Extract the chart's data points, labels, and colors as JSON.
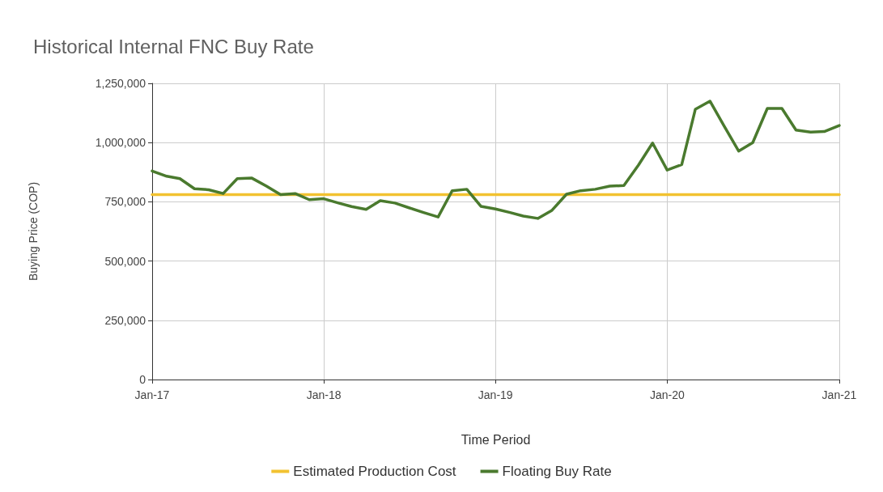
{
  "chart_data": {
    "type": "line",
    "title": "Historical Internal FNC Buy Rate",
    "xlabel": "Time Period",
    "ylabel": "Buying Price (COP)",
    "x": [
      "2017-01",
      "2017-02",
      "2017-03",
      "2017-04",
      "2017-05",
      "2017-06",
      "2017-07",
      "2017-08",
      "2017-09",
      "2017-10",
      "2017-11",
      "2017-12",
      "2018-01",
      "2018-02",
      "2018-03",
      "2018-04",
      "2018-05",
      "2018-06",
      "2018-07",
      "2018-08",
      "2018-09",
      "2018-10",
      "2018-11",
      "2018-12",
      "2019-01",
      "2019-02",
      "2019-03",
      "2019-04",
      "2019-05",
      "2019-06",
      "2019-07",
      "2019-08",
      "2019-09",
      "2019-10",
      "2019-11",
      "2019-12",
      "2020-01",
      "2020-02",
      "2020-03",
      "2020-04",
      "2020-05",
      "2020-06",
      "2020-07",
      "2020-08",
      "2020-09",
      "2020-10",
      "2020-11",
      "2020-12",
      "2021-01"
    ],
    "series": [
      {
        "name": "Floating Buy Rate",
        "color": "#4a7a2e",
        "values": [
          880000,
          858000,
          848000,
          805000,
          801000,
          785000,
          848000,
          850000,
          816000,
          780000,
          785000,
          759000,
          763000,
          745000,
          730000,
          718000,
          755000,
          745000,
          725000,
          705000,
          686000,
          797000,
          803000,
          731000,
          720000,
          705000,
          690000,
          680000,
          714000,
          782000,
          797000,
          803000,
          816000,
          819000,
          905000,
          998000,
          884000,
          907000,
          1141000,
          1175000,
          1070000,
          964000,
          1000000,
          1144000,
          1144000,
          1053000,
          1044000,
          1047000,
          1072000
        ]
      },
      {
        "name": "Estimated Production Cost",
        "color": "#f2c230",
        "values": [
          780000,
          780000,
          780000,
          780000,
          780000,
          780000,
          780000,
          780000,
          780000,
          780000,
          780000,
          780000,
          780000,
          780000,
          780000,
          780000,
          780000,
          780000,
          780000,
          780000,
          780000,
          780000,
          780000,
          780000,
          780000,
          780000,
          780000,
          780000,
          780000,
          780000,
          780000,
          780000,
          780000,
          780000,
          780000,
          780000,
          780000,
          780000,
          780000,
          780000,
          780000,
          780000,
          780000,
          780000,
          780000,
          780000,
          780000,
          780000,
          780000
        ]
      }
    ],
    "xlim": [
      "2017-01",
      "2021-01"
    ],
    "xticks": [
      {
        "value": "2017-01",
        "label": "Jan-17"
      },
      {
        "value": "2018-01",
        "label": "Jan-18"
      },
      {
        "value": "2019-01",
        "label": "Jan-19"
      },
      {
        "value": "2020-01",
        "label": "Jan-20"
      },
      {
        "value": "2021-01",
        "label": "Jan-21"
      }
    ],
    "ylim": [
      0,
      1250000
    ],
    "yticks": [
      {
        "value": 0,
        "label": "0"
      },
      {
        "value": 250000,
        "label": "250,000"
      },
      {
        "value": 500000,
        "label": "500,000"
      },
      {
        "value": 750000,
        "label": "750,000"
      },
      {
        "value": 1000000,
        "label": "1,000,000"
      },
      {
        "value": 1250000,
        "label": "1,250,000"
      }
    ],
    "grid": true,
    "legend": "bottom",
    "marker": "none",
    "line_style": "solid"
  }
}
